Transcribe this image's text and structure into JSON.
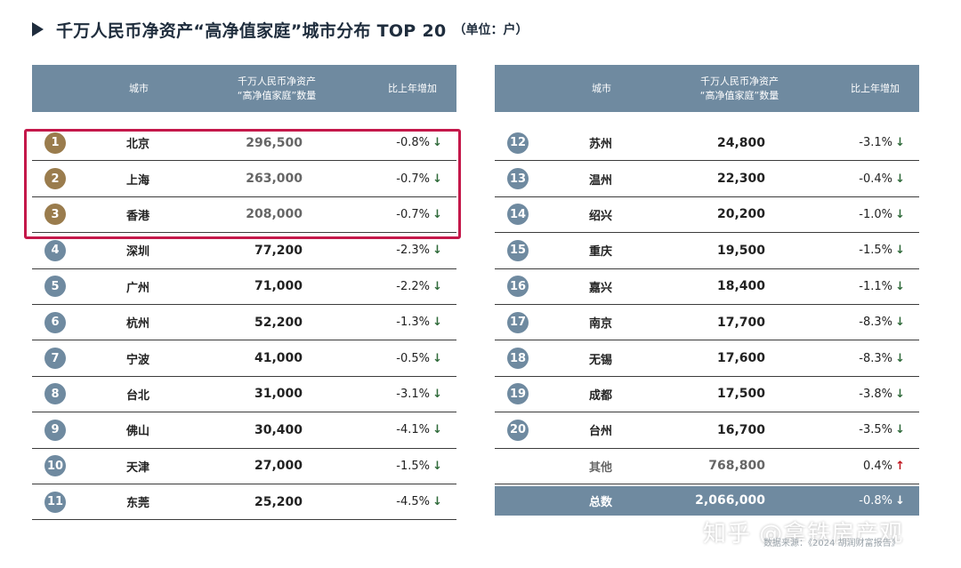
{
  "title": {
    "text": "千万人民币净资产“高净值家庭”城市分布 TOP 20",
    "unit": "（单位：户）"
  },
  "header": {
    "city": "城市",
    "count_line1": "千万人民币净资产",
    "count_line2": "“高净值家庭”数量",
    "change": "比上年增加"
  },
  "left_rows": [
    {
      "rank": "1",
      "city": "北京",
      "count": "296,500",
      "change": "-0.8%",
      "arrow": "↓"
    },
    {
      "rank": "2",
      "city": "上海",
      "count": "263,000",
      "change": "-0.7%",
      "arrow": "↓"
    },
    {
      "rank": "3",
      "city": "香港",
      "count": "208,000",
      "change": "-0.7%",
      "arrow": "↓"
    },
    {
      "rank": "4",
      "city": "深圳",
      "count": "77,200",
      "change": "-2.3%",
      "arrow": "↓"
    },
    {
      "rank": "5",
      "city": "广州",
      "count": "71,000",
      "change": "-2.2%",
      "arrow": "↓"
    },
    {
      "rank": "6",
      "city": "杭州",
      "count": "52,200",
      "change": "-1.3%",
      "arrow": "↓"
    },
    {
      "rank": "7",
      "city": "宁波",
      "count": "41,000",
      "change": "-0.5%",
      "arrow": "↓"
    },
    {
      "rank": "8",
      "city": "台北",
      "count": "31,000",
      "change": "-3.1%",
      "arrow": "↓"
    },
    {
      "rank": "9",
      "city": "佛山",
      "count": "30,400",
      "change": "-4.1%",
      "arrow": "↓"
    },
    {
      "rank": "10",
      "city": "天津",
      "count": "27,000",
      "change": "-1.5%",
      "arrow": "↓"
    },
    {
      "rank": "11",
      "city": "东莞",
      "count": "25,200",
      "change": "-4.5%",
      "arrow": "↓"
    }
  ],
  "right_rows": [
    {
      "rank": "12",
      "city": "苏州",
      "count": "24,800",
      "change": "-3.1%",
      "arrow": "↓"
    },
    {
      "rank": "13",
      "city": "温州",
      "count": "22,300",
      "change": "-0.4%",
      "arrow": "↓"
    },
    {
      "rank": "14",
      "city": "绍兴",
      "count": "20,200",
      "change": "-1.0%",
      "arrow": "↓"
    },
    {
      "rank": "15",
      "city": "重庆",
      "count": "19,500",
      "change": "-1.5%",
      "arrow": "↓"
    },
    {
      "rank": "16",
      "city": "嘉兴",
      "count": "18,400",
      "change": "-1.1%",
      "arrow": "↓"
    },
    {
      "rank": "17",
      "city": "南京",
      "count": "17,700",
      "change": "-8.3%",
      "arrow": "↓"
    },
    {
      "rank": "18",
      "city": "无锡",
      "count": "17,600",
      "change": "-8.3%",
      "arrow": "↓"
    },
    {
      "rank": "19",
      "city": "成都",
      "count": "17,500",
      "change": "-3.8%",
      "arrow": "↓"
    },
    {
      "rank": "20",
      "city": "台州",
      "count": "16,700",
      "change": "-3.5%",
      "arrow": "↓"
    }
  ],
  "other_row": {
    "city": "其他",
    "count": "768,800",
    "change": "0.4%",
    "arrow": "↑"
  },
  "total_row": {
    "city": "总数",
    "count": "2,066,000",
    "change": "-0.8%",
    "arrow": "↓"
  },
  "watermark": "知乎 @拿铁房产观",
  "source": "数据来源：《2024 胡润财富报告》",
  "colors": {
    "header_bg": "#6f8aa0",
    "gold_badge": "#9a7c4d",
    "highlight_border": "#c4184a",
    "down_arrow": "#2f6a3a",
    "up_arrow": "#c0141c"
  }
}
